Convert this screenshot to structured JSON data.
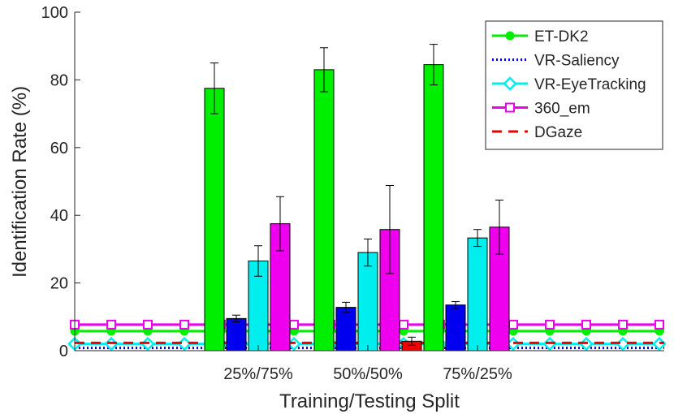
{
  "chart_data": {
    "type": "bar",
    "title": "",
    "xlabel": "Training/Testing Split",
    "ylabel": "Identification Rate (%)",
    "ylim": [
      0,
      100
    ],
    "yticks": [
      "0",
      "20",
      "40",
      "60",
      "80",
      "100"
    ],
    "categories": [
      "25%/75%",
      "50%/50%",
      "75%/25%"
    ],
    "series": [
      {
        "name": "ET-DK2",
        "color": "#00ee00",
        "values": [
          77.5,
          83.0,
          84.5
        ],
        "err": [
          7.5,
          6.5,
          6.0
        ]
      },
      {
        "name": "VR-Saliency",
        "color": "#0000ee",
        "values": [
          9.5,
          12.8,
          13.5
        ],
        "err": [
          1.0,
          1.5,
          1.0
        ]
      },
      {
        "name": "VR-EyeTracking",
        "color": "#00eeee",
        "values": [
          26.5,
          29.0,
          33.3
        ],
        "err": [
          4.5,
          4.0,
          2.5
        ]
      },
      {
        "name": "360_em",
        "color": "#ee00ee",
        "values": [
          37.5,
          35.8,
          36.5
        ],
        "err": [
          8.0,
          13.0,
          8.0
        ]
      },
      {
        "name": "DGaze",
        "color": "#ee0000",
        "values": [
          0,
          2.8,
          0
        ],
        "err": [
          0,
          1.2,
          0
        ]
      }
    ],
    "baselines": [
      {
        "name": "ET-DK2",
        "value": 5.8,
        "color": "#00ee00",
        "style": "solid",
        "marker": "circle"
      },
      {
        "name": "VR-Saliency",
        "value": 0.8,
        "color": "#0000ee",
        "style": "dotted",
        "marker": "none"
      },
      {
        "name": "VR-EyeTracking",
        "value": 2.0,
        "color": "#00eeee",
        "style": "solid",
        "marker": "diamond"
      },
      {
        "name": "360_em",
        "value": 7.7,
        "color": "#ee00ee",
        "style": "solid",
        "marker": "square"
      },
      {
        "name": "DGaze",
        "value": 2.3,
        "color": "#ee0000",
        "style": "dashed",
        "marker": "none"
      }
    ],
    "legend_position": "top-right",
    "grid": false
  }
}
